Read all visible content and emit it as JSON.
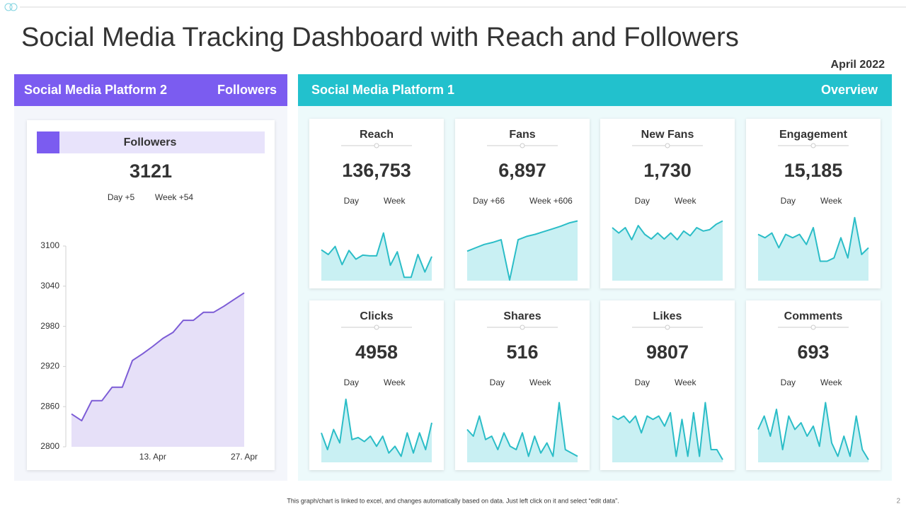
{
  "title": "Social Media Tracking Dashboard with Reach and Followers",
  "date": "April 2022",
  "footer": "This graph/chart is linked to excel, and changes automatically based on data. Just left click on it and select “edit data”.",
  "page_number": "2",
  "left_panel": {
    "header": "Social Media Platform 2",
    "tag": "Followers"
  },
  "right_panel": {
    "header": "Social Media Platform 1",
    "tag": "Overview"
  },
  "chart_data": [
    {
      "type": "area",
      "title": "Followers",
      "kpi": "3121",
      "day": "Day +5",
      "week": "Week +54",
      "color": "#7c5cd6",
      "categories": [
        null,
        null,
        null,
        null,
        null,
        null,
        null,
        null,
        "13. Apr",
        null,
        null,
        null,
        null,
        null,
        null,
        null,
        null,
        "27. Apr"
      ],
      "values": [
        2849,
        2839,
        2869,
        2869,
        2889,
        2889,
        2929,
        2939,
        2950,
        2962,
        2971,
        2989,
        2989,
        3001,
        3001,
        3010,
        3020,
        3030
      ],
      "ylim": [
        2800,
        3100
      ],
      "yticks": [
        2800,
        2860,
        2920,
        2980,
        3040,
        3100
      ]
    },
    {
      "type": "sparkline",
      "title": "Reach",
      "kpi": "136,753",
      "day": "Day",
      "week": "Week",
      "color": "#2bbdc7",
      "ylim": [
        0,
        100
      ],
      "values": [
        47,
        40,
        52,
        25,
        46,
        33,
        39,
        38,
        38,
        72,
        24,
        44,
        6,
        6,
        40,
        14,
        37
      ]
    },
    {
      "type": "sparkline",
      "title": "Fans",
      "kpi": "6,897",
      "day": "Day +66",
      "week": "Week +606",
      "color": "#2bbdc7",
      "ylim": [
        0,
        100
      ],
      "values": [
        45,
        50,
        55,
        58,
        62,
        2,
        62,
        67,
        70,
        74,
        78,
        82,
        87,
        90
      ]
    },
    {
      "type": "sparkline",
      "title": "New Fans",
      "kpi": "1,730",
      "day": "Day",
      "week": "Week",
      "color": "#2bbdc7",
      "ylim": [
        0,
        100
      ],
      "values": [
        80,
        72,
        80,
        62,
        83,
        70,
        63,
        72,
        63,
        72,
        62,
        75,
        68,
        80,
        75,
        77,
        85,
        90
      ]
    },
    {
      "type": "sparkline",
      "title": "Engagement",
      "kpi": "15,185",
      "day": "Day",
      "week": "Week",
      "color": "#2bbdc7",
      "ylim": [
        0,
        100
      ],
      "values": [
        70,
        65,
        72,
        50,
        70,
        65,
        70,
        55,
        80,
        30,
        30,
        35,
        65,
        35,
        95,
        40,
        50
      ]
    },
    {
      "type": "sparkline",
      "title": "Clicks",
      "kpi": "4958",
      "day": "Day",
      "week": "Week",
      "color": "#2bbdc7",
      "ylim": [
        0,
        100
      ],
      "values": [
        45,
        20,
        50,
        30,
        95,
        35,
        38,
        32,
        40,
        25,
        40,
        15,
        25,
        10,
        45,
        15,
        45,
        20,
        60
      ]
    },
    {
      "type": "sparkline",
      "title": "Shares",
      "kpi": "516",
      "day": "Day",
      "week": "Week",
      "color": "#2bbdc7",
      "ylim": [
        0,
        100
      ],
      "values": [
        50,
        40,
        70,
        35,
        40,
        20,
        45,
        25,
        20,
        45,
        10,
        40,
        15,
        30,
        10,
        90,
        20,
        15,
        10
      ]
    },
    {
      "type": "sparkline",
      "title": "Likes",
      "kpi": "9807",
      "day": "Day",
      "week": "Week",
      "color": "#2bbdc7",
      "ylim": [
        0,
        100
      ],
      "values": [
        70,
        65,
        70,
        60,
        70,
        45,
        70,
        65,
        70,
        55,
        75,
        10,
        65,
        10,
        75,
        10,
        90,
        20,
        20,
        5
      ]
    },
    {
      "type": "sparkline",
      "title": "Comments",
      "kpi": "693",
      "day": "Day",
      "week": "Week",
      "color": "#2bbdc7",
      "ylim": [
        0,
        100
      ],
      "values": [
        50,
        70,
        40,
        80,
        20,
        70,
        50,
        60,
        40,
        55,
        25,
        90,
        30,
        10,
        40,
        10,
        70,
        20,
        5
      ]
    }
  ]
}
